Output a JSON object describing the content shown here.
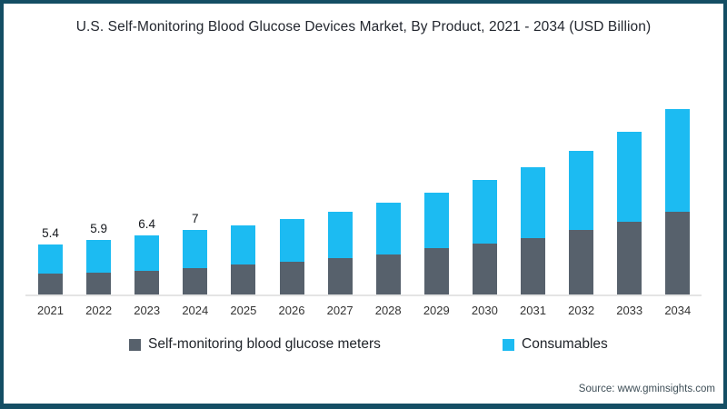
{
  "title": "U.S. Self-Monitoring Blood Glucose Devices Market, By Product, 2021 - 2034 (USD Billion)",
  "source": "Source: www.gminsights.com",
  "colors": {
    "meters": "#57616C",
    "consumables": "#1CBBF2",
    "frame_border": "#144E64",
    "axis_line": "#E4E4E4",
    "title_text": "#23272F",
    "tick_text": "#333333",
    "source_text": "#3E4E57",
    "background": "#FFFFFF"
  },
  "legend": {
    "items": [
      {
        "label": "Self-monitoring blood glucose meters",
        "color": "#57616C"
      },
      {
        "label": "Consumables",
        "color": "#1CBBF2"
      }
    ]
  },
  "chart_data": {
    "type": "bar",
    "stacked": true,
    "title": "U.S. Self-Monitoring Blood Glucose Devices Market, By Product, 2021 - 2034 (USD Billion)",
    "units": "USD Billion",
    "categories": [
      "2021",
      "2022",
      "2023",
      "2024",
      "2025",
      "2026",
      "2027",
      "2028",
      "2029",
      "2030",
      "2031",
      "2032",
      "2033",
      "2034"
    ],
    "series": [
      {
        "name": "Self-monitoring blood glucose meters",
        "color": "#57616C",
        "values": [
          2.3,
          2.4,
          2.6,
          2.9,
          3.3,
          3.6,
          4.0,
          4.4,
          5.0,
          5.5,
          6.1,
          7.0,
          7.9,
          9.0
        ]
      },
      {
        "name": "Consumables",
        "color": "#1CBBF2",
        "values": [
          3.1,
          3.5,
          3.8,
          4.1,
          4.2,
          4.6,
          5.0,
          5.6,
          6.1,
          7.0,
          7.8,
          8.6,
          9.8,
          11.2
        ]
      }
    ],
    "totals": [
      5.4,
      5.9,
      6.4,
      7.0,
      7.5,
      8.2,
      9.0,
      10.0,
      11.1,
      12.5,
      13.9,
      15.6,
      17.7,
      20.2
    ],
    "total_labels": [
      "5.4",
      "5.9",
      "6.4",
      "7",
      "",
      "",
      "",
      "",
      "",
      "",
      "",
      "",
      "",
      ""
    ],
    "xlabel": "",
    "ylabel": "",
    "ylim": [
      0,
      21
    ],
    "grid": false,
    "legend_position": "bottom"
  }
}
